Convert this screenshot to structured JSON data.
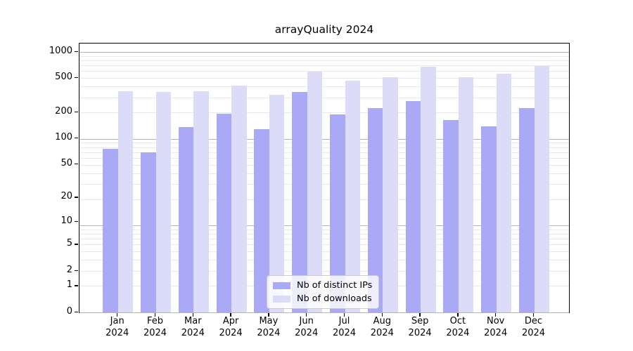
{
  "title": "arrayQuality 2024",
  "chart_data": {
    "type": "bar",
    "title": "arrayQuality 2024",
    "categories": [
      "Jan 2024",
      "Feb 2024",
      "Mar 2024",
      "Apr 2024",
      "May 2024",
      "Jun 2024",
      "Jul 2024",
      "Aug 2024",
      "Sep 2024",
      "Oct 2024",
      "Nov 2024",
      "Dec 2024"
    ],
    "series": [
      {
        "name": "Nb of distinct IPs",
        "color": "#a9a9f6",
        "values": [
          72,
          66,
          130,
          185,
          122,
          330,
          183,
          218,
          260,
          157,
          132,
          218
        ]
      },
      {
        "name": "Nb of downloads",
        "color": "#dcdbf8",
        "values": [
          340,
          330,
          340,
          395,
          310,
          570,
          450,
          490,
          645,
          495,
          540,
          660
        ]
      }
    ],
    "yscale": "log1p",
    "yticks": [
      0,
      1,
      2,
      5,
      10,
      20,
      50,
      100,
      200,
      500,
      1000
    ],
    "ylim": [
      0,
      1250
    ],
    "xlabel": "",
    "ylabel": "",
    "grid": "major-and-minor",
    "legend_position": "lower-center-inside"
  },
  "colors": {
    "background": "#ffffff",
    "spine": "#000000",
    "grid_major": "#b3b3b3",
    "grid_minor": "#e9e9e9",
    "legend_border": "#cccccc"
  }
}
